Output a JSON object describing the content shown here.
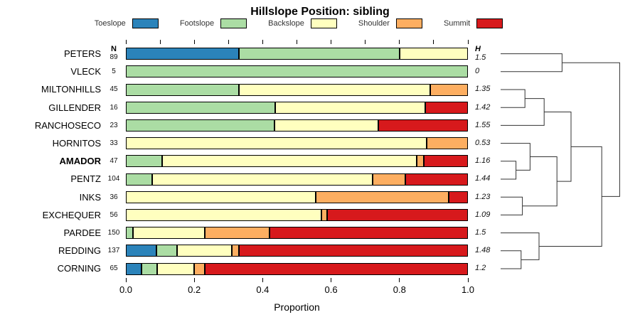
{
  "chart_data": {
    "type": "bar",
    "stacked": true,
    "orientation": "horizontal",
    "title": "Hillslope Position: sibling",
    "xlabel": "Proportion",
    "xlim": [
      0,
      1
    ],
    "xtick_labels": [
      "0.0",
      "0.2",
      "0.4",
      "0.6",
      "0.8",
      "1.0"
    ],
    "xtick_values": [
      0.0,
      0.2,
      0.4,
      0.6,
      0.8,
      1.0
    ],
    "grid": false,
    "legend_position": "top",
    "n_header": "N",
    "h_header": "H",
    "classes": [
      {
        "label": "Toeslope",
        "color": "#2B83BA"
      },
      {
        "label": "Footslope",
        "color": "#ABDDA4"
      },
      {
        "label": "Backslope",
        "color": "#FFFFBF"
      },
      {
        "label": "Shoulder",
        "color": "#FDAE61"
      },
      {
        "label": "Summit",
        "color": "#D7191C"
      }
    ],
    "rows": [
      {
        "name": "PETERS",
        "n": 89,
        "h": "1.5",
        "bold": false,
        "values": [
          0.33,
          0.47,
          0.2,
          0,
          0
        ]
      },
      {
        "name": "VLECK",
        "n": 5,
        "h": "0",
        "bold": false,
        "values": [
          0,
          1.0,
          0,
          0,
          0
        ]
      },
      {
        "name": "MILTONHILLS",
        "n": 45,
        "h": "1.35",
        "bold": false,
        "values": [
          0,
          0.33,
          0.56,
          0.11,
          0
        ]
      },
      {
        "name": "GILLENDER",
        "n": 16,
        "h": "1.42",
        "bold": false,
        "values": [
          0,
          0.4375,
          0.4375,
          0,
          0.125
        ]
      },
      {
        "name": "RANCHOSECO",
        "n": 23,
        "h": "1.55",
        "bold": false,
        "values": [
          0,
          0.435,
          0.304,
          0,
          0.261
        ]
      },
      {
        "name": "HORNITOS",
        "n": 33,
        "h": "0.53",
        "bold": false,
        "values": [
          0,
          0,
          0.879,
          0.121,
          0
        ]
      },
      {
        "name": "AMADOR",
        "n": 47,
        "h": "1.16",
        "bold": true,
        "values": [
          0,
          0.106,
          0.745,
          0.021,
          0.128
        ]
      },
      {
        "name": "PENTZ",
        "n": 104,
        "h": "1.44",
        "bold": false,
        "values": [
          0,
          0.077,
          0.644,
          0.096,
          0.183
        ]
      },
      {
        "name": "INKS",
        "n": 36,
        "h": "1.23",
        "bold": false,
        "values": [
          0,
          0,
          0.555,
          0.389,
          0.056
        ]
      },
      {
        "name": "EXCHEQUER",
        "n": 56,
        "h": "1.09",
        "bold": false,
        "values": [
          0,
          0,
          0.571,
          0.018,
          0.411
        ]
      },
      {
        "name": "PARDEE",
        "n": 150,
        "h": "1.5",
        "bold": false,
        "values": [
          0,
          0.02,
          0.21,
          0.19,
          0.58
        ]
      },
      {
        "name": "REDDING",
        "n": 137,
        "h": "1.48",
        "bold": false,
        "values": [
          0.09,
          0.06,
          0.16,
          0.02,
          0.67
        ]
      },
      {
        "name": "CORNING",
        "n": 65,
        "h": "1.2",
        "bold": false,
        "values": [
          0.046,
          0.046,
          0.108,
          0.031,
          0.769
        ]
      }
    ],
    "dendrogram": {
      "leaves_order": [
        "PETERS",
        "VLECK",
        "MILTONHILLS",
        "GILLENDER",
        "RANCHOSECO",
        "HORNITOS",
        "AMADOR",
        "PENTZ",
        "INKS",
        "EXCHEQUER",
        "PARDEE",
        "REDDING",
        "CORNING"
      ],
      "merges": [
        {
          "a": "L6",
          "b": "L7",
          "h": 0.12
        },
        {
          "a": "L11",
          "b": "L12",
          "h": 0.16
        },
        {
          "a": "L8",
          "b": "L9",
          "h": 0.17
        },
        {
          "a": "L2",
          "b": "L3",
          "h": 0.19
        },
        {
          "a": "L5",
          "b": "M0",
          "h": 0.23
        },
        {
          "a": "L10",
          "b": "M1",
          "h": 0.3
        },
        {
          "a": "M3",
          "b": "L4",
          "h": 0.34
        },
        {
          "a": "M4",
          "b": "M2",
          "h": 0.44
        },
        {
          "a": "L0",
          "b": "L1",
          "h": 0.48
        },
        {
          "a": "M6",
          "b": "M7",
          "h": 0.55
        },
        {
          "a": "M9",
          "b": "M5",
          "h": 0.79
        },
        {
          "a": "M8",
          "b": "M10",
          "h": 0.93
        }
      ]
    }
  }
}
